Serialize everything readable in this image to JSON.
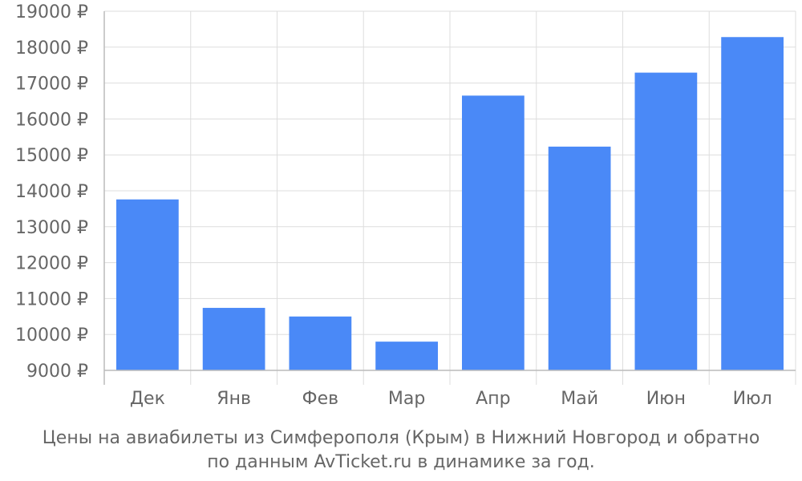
{
  "chart_data": {
    "type": "bar",
    "categories": [
      "Дек",
      "Янв",
      "Фев",
      "Мар",
      "Апр",
      "Май",
      "Июн",
      "Июл"
    ],
    "values": [
      13760,
      10740,
      10500,
      9800,
      16650,
      15230,
      17290,
      18280
    ],
    "ylim": [
      9000,
      19000
    ],
    "yticks": [
      9000,
      10000,
      11000,
      12000,
      13000,
      14000,
      15000,
      16000,
      17000,
      18000,
      19000
    ],
    "ytick_suffix": " ₽",
    "grid": true,
    "bar_color": "#4a89f7",
    "grid_color": "#dddddd",
    "axis_color": "#bbbbbb",
    "text_color": "#666666"
  },
  "caption": {
    "line1": "Цены на авиабилеты из Симферополя (Крым) в Нижний Новгород и обратно",
    "line2": "по данным AvTicket.ru в динамике за год."
  }
}
